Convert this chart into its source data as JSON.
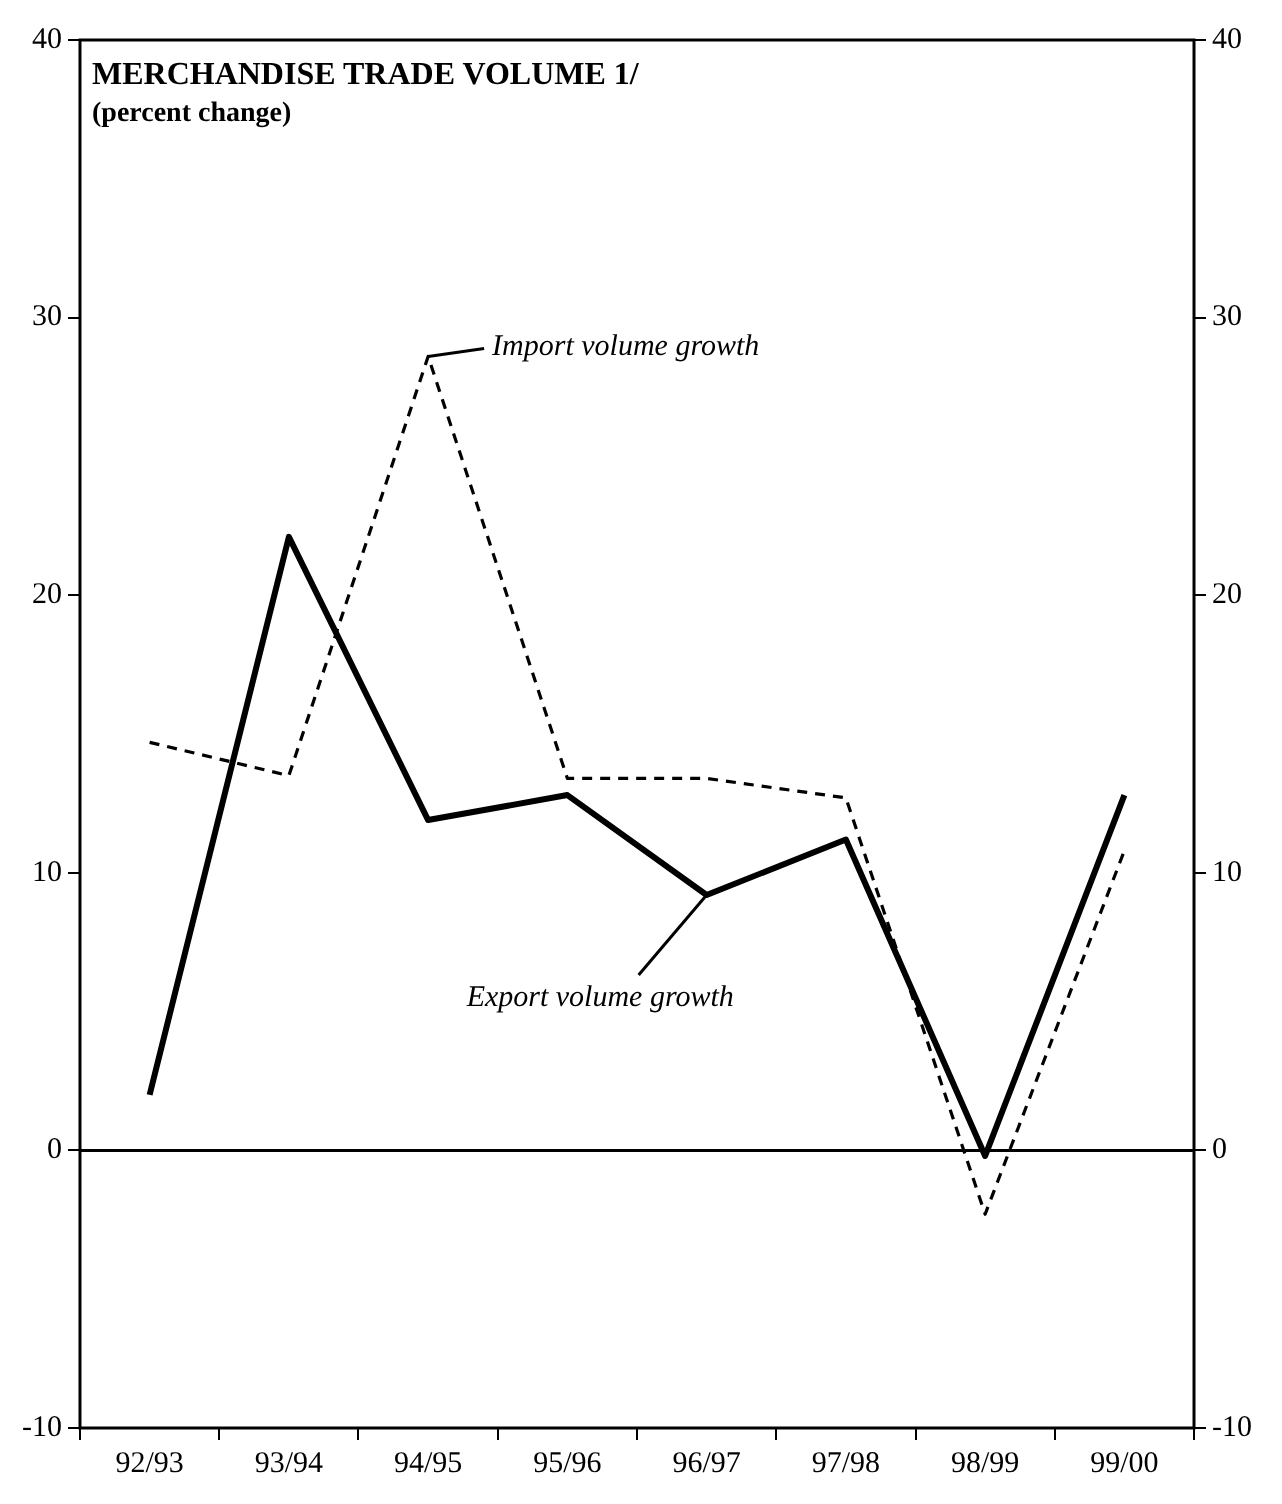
{
  "chart_data": {
    "type": "line",
    "title": "MERCHANDISE TRADE VOLUME 1/",
    "subtitle": "(percent change)",
    "categories": [
      "92/93",
      "93/94",
      "94/95",
      "95/96",
      "96/97",
      "97/98",
      "98/99",
      "99/00"
    ],
    "series": [
      {
        "color": "#000000",
        "line_style": "solid",
        "values": [
          2,
          22.1,
          11.9,
          12.8,
          9.2,
          11.2,
          -0.2,
          12.8
        ]
      },
      {
        "color": "#000000",
        "line_style": "dashed",
        "values": [
          14.7,
          13.5,
          28.6,
          13.4,
          13.4,
          12.7,
          -2.3,
          10.8
        ]
      }
    ],
    "ylim": [
      -10,
      40
    ],
    "yticks": [
      -10,
      0,
      10,
      20,
      30,
      40
    ],
    "y2lim": [
      -10,
      40
    ],
    "y2ticks": [
      -10,
      0,
      10,
      20,
      30,
      40
    ],
    "ref_lines": [
      {
        "axis": "y",
        "value": 0
      }
    ],
    "annotations": [
      {
        "text": "Import volume growth",
        "x": "94/95",
        "y": 28.6
      },
      {
        "text": "Export volume growth",
        "x": "96/97",
        "y": 9.2
      }
    ],
    "grid": false,
    "legend": false,
    "marker": "none"
  }
}
